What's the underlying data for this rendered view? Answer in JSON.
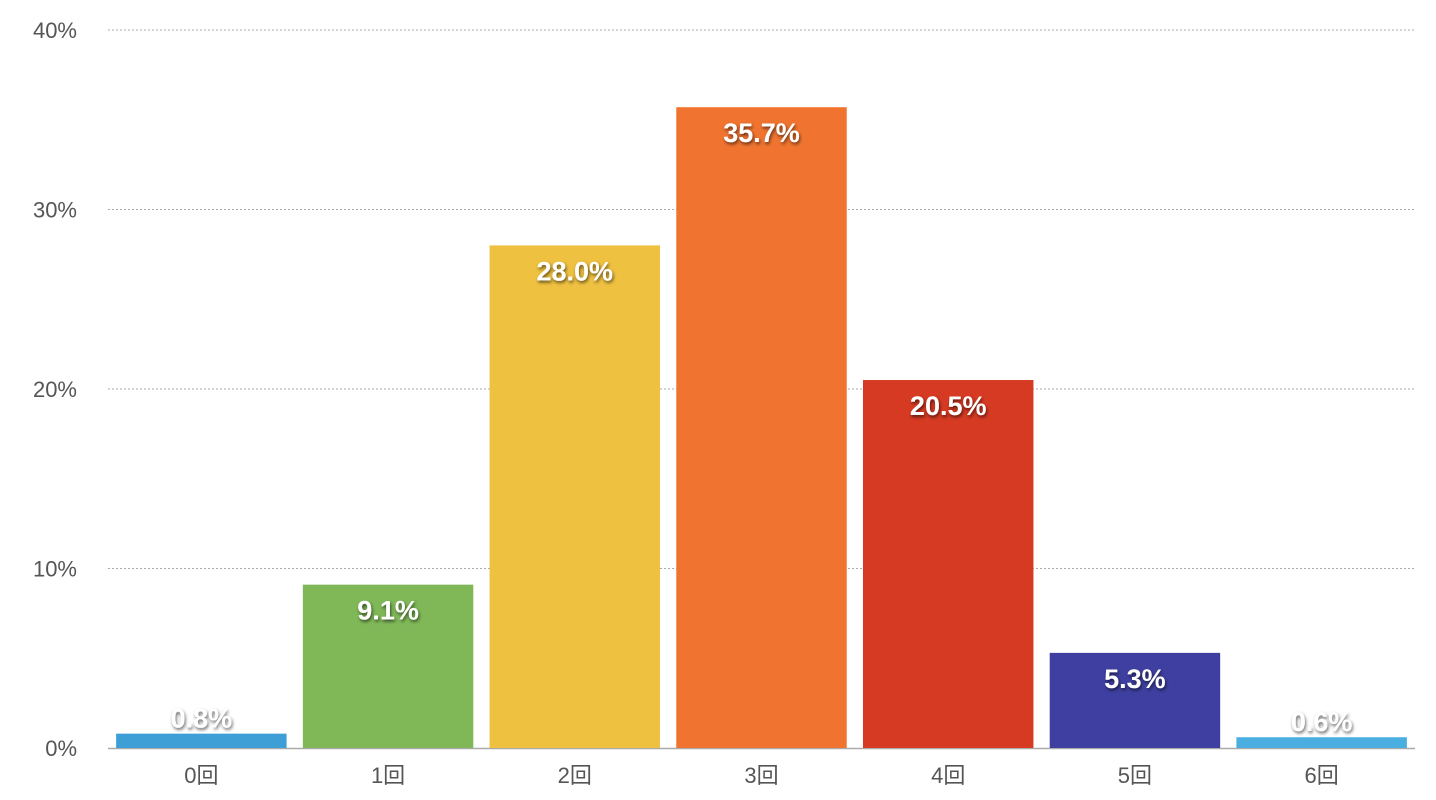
{
  "chart_data": {
    "type": "bar",
    "title": "",
    "xlabel": "",
    "ylabel": "",
    "categories": [
      "0回",
      "1回",
      "2回",
      "3回",
      "4回",
      "5回",
      "6回"
    ],
    "values": [
      0.8,
      9.1,
      28.0,
      35.7,
      20.5,
      5.3,
      0.6
    ],
    "data_labels": [
      "0.8%",
      "9.1%",
      "28.0%",
      "35.7%",
      "20.5%",
      "5.3%",
      "0.6%"
    ],
    "ylim": [
      0,
      40
    ],
    "yticks": [
      0,
      10,
      20,
      30,
      40
    ],
    "ytick_labels": [
      "0%",
      "10%",
      "20%",
      "30%",
      "40%"
    ],
    "grid": true,
    "colors": [
      "#3d9fd6",
      "#80b858",
      "#efc141",
      "#f07430",
      "#d63a22",
      "#3e3fa0",
      "#4aaee0"
    ]
  }
}
